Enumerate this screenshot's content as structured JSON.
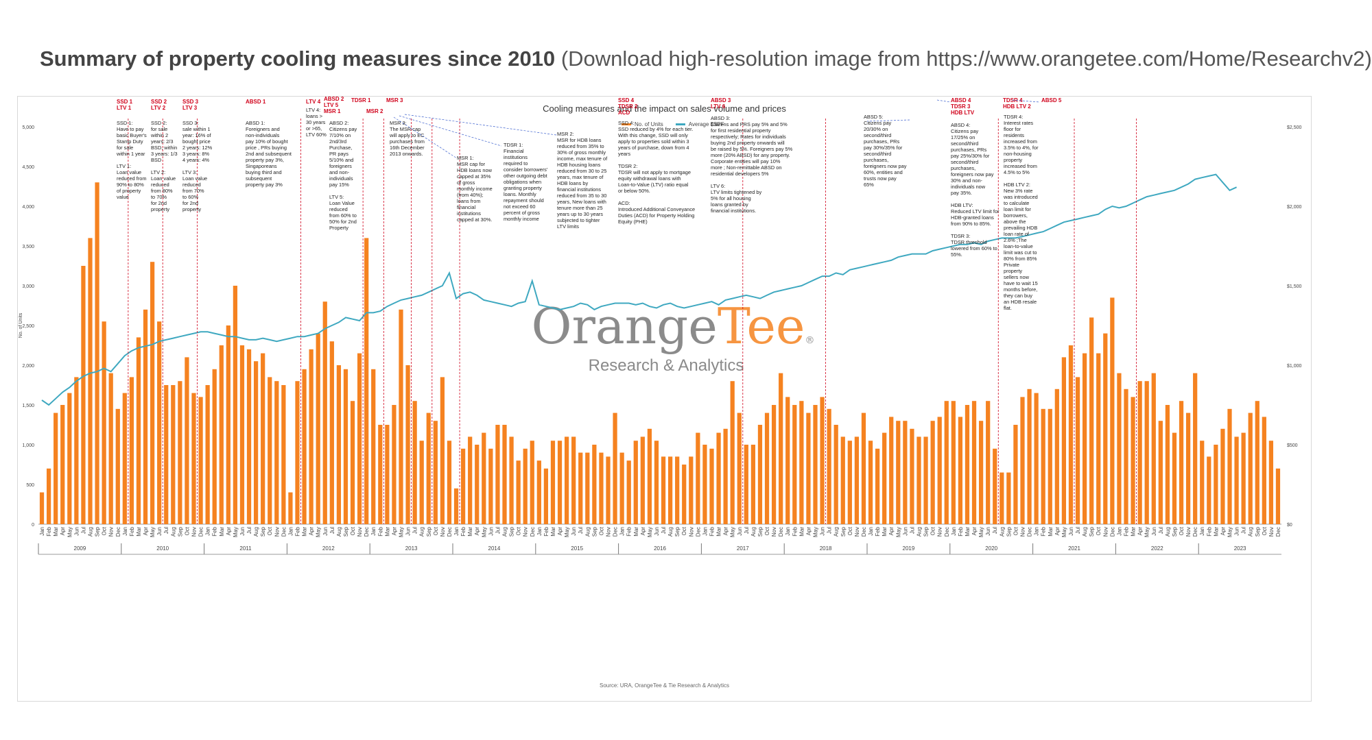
{
  "page": {
    "title_bold": "Summary of property cooling measures since 2010",
    "title_rest": "(Download high-resolution image from https://www.orangetee.com/Home/Researchv2)"
  },
  "chart_data": {
    "type": "bar",
    "title": "Cooling measures and the impact on sales volume and prices",
    "ylabel": "No. of Units",
    "source": "Source: URA, OrangeTee & Tie Research & Analytics",
    "ylim": [
      0,
      5000
    ],
    "y2lim": [
      0,
      2500
    ],
    "yticks": [
      "0",
      "500",
      "1,000",
      "1,500",
      "2,000",
      "2,500",
      "3,000",
      "3,500",
      "4,000",
      "4,500",
      "5,000"
    ],
    "y2ticks": [
      "$0",
      "$500",
      "$1,000",
      "$1,500",
      "$2,000",
      "$2,500"
    ],
    "months": [
      "Jan",
      "Feb",
      "Mar",
      "Apr",
      "May",
      "Jun",
      "Jul",
      "Aug",
      "Sep",
      "Oct",
      "Nov",
      "Dec"
    ],
    "years": [
      "2009",
      "2010",
      "2011",
      "2012",
      "2013",
      "2014",
      "2015",
      "2016",
      "2017",
      "2018",
      "2019",
      "2020",
      "2021",
      "2022",
      "2023"
    ],
    "series": [
      {
        "name": "No. of Units",
        "type": "bar",
        "color": "#f58220",
        "values": [
          400,
          700,
          1400,
          1500,
          1650,
          1850,
          3250,
          3600,
          4300,
          2550,
          1900,
          1450,
          1650,
          1850,
          2350,
          2700,
          3300,
          2550,
          1750,
          1750,
          1800,
          2100,
          1650,
          1600,
          1750,
          1950,
          2250,
          2500,
          3000,
          2250,
          2200,
          2050,
          2150,
          1850,
          1800,
          1750,
          400,
          1800,
          1950,
          2200,
          2400,
          2800,
          2300,
          2000,
          1950,
          1550,
          2150,
          3600,
          1950,
          1250,
          1250,
          1500,
          2700,
          2000,
          1550,
          1050,
          1400,
          1300,
          1850,
          1050,
          450,
          950,
          1100,
          1000,
          1150,
          950,
          1250,
          1250,
          1100,
          800,
          950,
          1050,
          800,
          700,
          1050,
          1050,
          1100,
          1100,
          900,
          900,
          1000,
          900,
          850,
          1400,
          900,
          800,
          1050,
          1100,
          1200,
          1050,
          850,
          850,
          850,
          750,
          850,
          1150,
          1000,
          950,
          1150,
          1200,
          1800,
          1400,
          1000,
          1000,
          1250,
          1400,
          1500,
          1900,
          1600,
          1500,
          1550,
          1400,
          1500,
          1600,
          1450,
          1250,
          1100,
          1050,
          1100,
          1400,
          1050,
          950,
          1150,
          1350,
          1300,
          1300,
          1200,
          1100,
          1100,
          1300,
          1350,
          1550,
          1550,
          1350,
          1500,
          1550,
          1300,
          1550,
          950,
          650,
          650,
          1250,
          1600,
          1700,
          1650,
          1450,
          1450,
          1700,
          2100,
          2250,
          1850,
          2150,
          2600,
          2150,
          2400,
          2850,
          1900,
          1700,
          1600,
          1800,
          1800,
          1900,
          1300,
          1500,
          1150,
          1550,
          1400,
          1900,
          1050,
          850,
          1000,
          1200,
          1450,
          1100,
          1150,
          1400,
          1550,
          1350,
          1050,
          700
        ]
      },
      {
        "name": "Average $SPF",
        "type": "line",
        "color": "#3ea8c0",
        "values": [
          780,
          750,
          790,
          830,
          860,
          900,
          930,
          950,
          960,
          980,
          960,
          1010,
          1060,
          1090,
          1110,
          1120,
          1130,
          1150,
          1160,
          1170,
          1180,
          1190,
          1200,
          1210,
          1210,
          1200,
          1190,
          1180,
          1180,
          1170,
          1160,
          1160,
          1170,
          1160,
          1150,
          1160,
          1170,
          1180,
          1180,
          1190,
          1200,
          1230,
          1250,
          1270,
          1300,
          1290,
          1280,
          1330,
          1330,
          1340,
          1370,
          1390,
          1410,
          1420,
          1430,
          1440,
          1460,
          1480,
          1500,
          1580,
          1420,
          1450,
          1460,
          1440,
          1410,
          1400,
          1390,
          1380,
          1370,
          1390,
          1400,
          1530,
          1380,
          1370,
          1360,
          1350,
          1360,
          1370,
          1390,
          1380,
          1350,
          1370,
          1380,
          1390,
          1390,
          1390,
          1380,
          1390,
          1370,
          1360,
          1380,
          1390,
          1370,
          1360,
          1370,
          1380,
          1390,
          1400,
          1380,
          1410,
          1420,
          1430,
          1440,
          1430,
          1420,
          1440,
          1460,
          1470,
          1480,
          1490,
          1500,
          1520,
          1540,
          1560,
          1560,
          1580,
          1570,
          1600,
          1610,
          1620,
          1630,
          1640,
          1650,
          1660,
          1680,
          1690,
          1700,
          1700,
          1700,
          1720,
          1730,
          1740,
          1750,
          1760,
          1760,
          1770,
          1760,
          1780,
          1790,
          1800,
          1800,
          1800,
          1810,
          1820,
          1830,
          1840,
          1860,
          1880,
          1900,
          1910,
          1920,
          1930,
          1940,
          1950,
          1980,
          2000,
          1990,
          2000,
          2020,
          2040,
          2060,
          2070,
          2080,
          2090,
          2100,
          2120,
          2140,
          2170,
          2180,
          2190,
          2200,
          2150,
          2100,
          2120
        ]
      }
    ],
    "annotations": [
      {
        "head": "SSD 1\nLTV 1",
        "text": "SSD 1:\nHave to pay\nbasic Buyer's\nStamp Duty\nfor sale\nwithin 1 year\n\nLTV 1:\nLoan value\nreduced from\n90% to 80%\nof property\nvalue"
      },
      {
        "head": "SSD 2\nLTV 2",
        "text": "SSD 2:\nfor sale\nwithin 2\nyears: 2/3\nBSD, within\n3 years: 1/3\nBSD\n\nLTV 2:\nLoan value\nreduced\nfrom 80%\nto 70%\nfor 2nd\nproperty"
      },
      {
        "head": "SSD 3\nLTV 3",
        "text": "SSD 3:\nsale within 1\nyear: 16% of\nbought price\n2 years: 12%\n3 years: 8%\n4 years: 4%\n\nLTV 3:\nLoan value\nreduced\nfrom 70%\nto 60%\nfor 2nd\nproperty"
      },
      {
        "head": "ABSD 1",
        "text": "ABSD 1:\nForeigners and\nnon-individuals\npay 10% of bought\nprice , PRs buying\n2nd and subsequent\nproperty pay 3%,\nSingaporeans\nbuying third and\nsubsequent\nproperty pay 3%"
      },
      {
        "head": "LTV 4",
        "text": "LTV 4:\nloans >\n30 years\nor >65,\nLTV 60%"
      },
      {
        "head": "ABSD 2\nLTV 5\nMSR 1",
        "text": "ABSD 2:\nCitizens pay\n7/10% on\n2nd/3rd\nPurchase,\nPR pays\n5/10% and\nforeigners\nand non-\nindividuals\npay 15%\n\nLTV 5:\nLoan Value\nreduced\nfrom 60% to\n50% for 2nd\nProperty"
      },
      {
        "head": "TDSR 1",
        "text": ""
      },
      {
        "head": "MSR 2",
        "text": ""
      },
      {
        "head": "MSR 3",
        "text": "MSR 3:\nThe MSR cap\nwill apply to EC\npurchases from\n16th December\n2013 onwards."
      },
      {
        "head": "",
        "text": "MSR 1:\nMSR cap for\nHDB loans now\ncapped at 35%\nof gross\nmonthly income\n(from 40%);\nloans from\nfinancial\ninstitutions\ncapped at 30%."
      },
      {
        "head": "",
        "text": "TDSR 1:\nFinancial\ninstitutions\nrequired to\nconsider borrowers'\nother outgoing debt\nobligations when\ngranting property\nloans. Monthly\nrepayment should\nnot exceed 60\npercent of gross\nmonthly income"
      },
      {
        "head": "",
        "text": "MSR 2:\nMSR for HDB loans\nreduced from 35% to\n30% of gross monthly\nincome, max tenure of\nHDB housing loans\nreduced from 30 to 25\nyears, max tenure of\nHDB loans by\nfinancial institutions\nreduced from 35 to 30\nyears, New loans with\ntenure more than 25\nyears up to 30 years\nsubjected to tighter\nLTV limits"
      },
      {
        "head": "SSD 4\nTDSR 2\nACD",
        "text": "SSD 4:\nSSD reduced by 4% for each tier.\nWith this change, SSD will only\napply to properties sold within 3\nyears of purchase, down from 4\nyears\n\nTDSR 2:\nTDSR will not apply to mortgage\nequity withdrawal loans with\nLoan-to-Value (LTV) ratio equal\nor below 50%.\n\nACD:\nIntroduced Additional Conveyance\nDuties (ACD) for Property Holding\nEquity (PHE)"
      },
      {
        "head": "ABSD 3\nLTV 6",
        "text": "ABSD 3:\nCitizens and PRS pay 5% and 5%\nfor first residential property\nrespectively; Rates for individuals\nbuying 2nd property onwards will\nbe raised by 5%. Foreigners pay 5%\nmore (20% ABSD) for any property.\nCorporate entities will pay 10%\nmore ; Non-remittable ABSD on\nresidential developers 5%\n\nLTV 6:\nLTV limits tightened by\n5% for all housing\nloans granted by\nfinancial institutions."
      },
      {
        "head": "",
        "text": "ABSD 5:\nCitizens pay\n20/30% on\nsecond/third\npurchases, PRs\npay 30%/35% for\nsecond/third\npurchases,\nforeigners now pay\n60%, entities and\ntrusts now pay\n65%"
      },
      {
        "head": "ABSD 4\nTDSR 3\nHDB LTV",
        "text": "ABSD 4:\nCitizens pay\n17/25% on\nsecond/third\npurchases, PRs\npay 25%/30% for\nsecond/third\npurchases,\nforeigners now pay\n30% and non-\nindividuals now\npay 35%.\n\nHDB LTV:\nReduced LTV limit for\nHDB-granted loans\nfrom 90% to 85%.\n\nTDSR 3:\nTDSR threshold\nlowered from 60% to\n55%."
      },
      {
        "head": "TDSR 4\nHDB LTV 2",
        "text": "TDSR 4:\nInterest rates\nfloor for\nresidents\nincreased from\n3.5% to 4%, for\nnon-housing\nproperty\nincreased from\n4.5% to 5%\n\nHDB LTV 2:\nNew 3% rate\nwas introduced\nto calculate\nloan limit for\nborrowers,\nabove the\nprevailing HDB\nloan rate of\n2.6% ;The\nloan-to-value\nlimit was cut to\n80% from 85%\nPrivate\nproperty\nsellers now\nhave to wait 15\nmonths before,\nthey can buy\nan HDB resale\nflat."
      },
      {
        "head": "ABSD 5",
        "text": ""
      }
    ]
  },
  "watermark": {
    "brand_a": "Orange",
    "brand_b": "Tee",
    "reg": "®",
    "tagline": "Research & Analytics",
    "color_a": "#777777",
    "color_b": "#f58220"
  },
  "colors": {
    "bars": "#f58220",
    "line": "#3ea8c0",
    "markers": "#d0021b"
  }
}
